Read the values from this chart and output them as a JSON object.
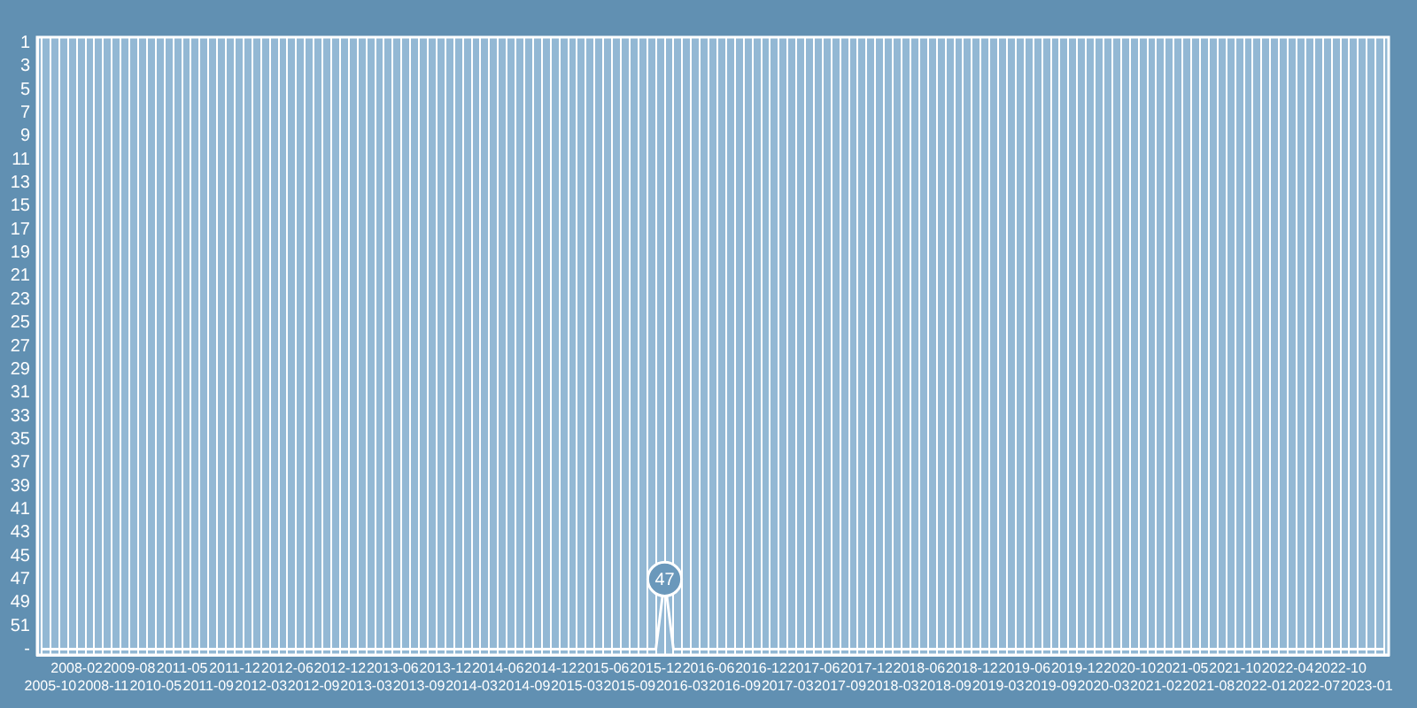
{
  "chart_data": {
    "type": "line",
    "categories": [
      null,
      "2005-10",
      null,
      null,
      "2008-02",
      null,
      null,
      "2008-11",
      null,
      null,
      "2009-08",
      null,
      null,
      "2010-05",
      null,
      null,
      "2011-05",
      null,
      null,
      "2011-09",
      null,
      null,
      "2011-12",
      null,
      null,
      "2012-03",
      null,
      null,
      "2012-06",
      null,
      null,
      "2012-09",
      null,
      null,
      "2012-12",
      null,
      null,
      "2013-03",
      null,
      null,
      "2013-06",
      null,
      null,
      "2013-09",
      null,
      null,
      "2013-12",
      null,
      null,
      "2014-03",
      null,
      null,
      "2014-06",
      null,
      null,
      "2014-09",
      null,
      null,
      "2014-12",
      null,
      null,
      "2015-03",
      null,
      null,
      "2015-06",
      null,
      null,
      "2015-09",
      null,
      null,
      "2015-12",
      null,
      null,
      "2016-03",
      null,
      null,
      "2016-06",
      null,
      null,
      "2016-09",
      null,
      null,
      "2016-12",
      null,
      null,
      "2017-03",
      null,
      null,
      "2017-06",
      null,
      null,
      "2017-09",
      null,
      null,
      "2017-12",
      null,
      null,
      "2018-03",
      null,
      null,
      "2018-06",
      null,
      null,
      "2018-09",
      null,
      null,
      "2018-12",
      null,
      null,
      "2019-03",
      null,
      null,
      "2019-06",
      null,
      null,
      "2019-09",
      null,
      null,
      "2019-12",
      null,
      null,
      "2020-03",
      null,
      null,
      "2020-10",
      null,
      null,
      "2021-02",
      null,
      null,
      "2021-05",
      null,
      null,
      "2021-08",
      null,
      null,
      "2021-10",
      null,
      null,
      "2022-01",
      null,
      null,
      "2022-04",
      null,
      null,
      "2022-07",
      null,
      null,
      "2022-10",
      null,
      null,
      "2023-01",
      null,
      null
    ],
    "values": [
      53,
      53,
      53,
      53,
      53,
      53,
      53,
      53,
      53,
      53,
      53,
      53,
      53,
      53,
      53,
      53,
      53,
      53,
      53,
      53,
      53,
      53,
      53,
      53,
      53,
      53,
      53,
      53,
      53,
      53,
      53,
      53,
      53,
      53,
      53,
      53,
      53,
      53,
      53,
      53,
      53,
      53,
      53,
      53,
      53,
      53,
      53,
      53,
      53,
      53,
      53,
      53,
      53,
      53,
      53,
      53,
      53,
      53,
      53,
      53,
      53,
      53,
      53,
      53,
      53,
      53,
      53,
      53,
      53,
      53,
      53,
      47,
      53,
      53,
      53,
      53,
      53,
      53,
      53,
      53,
      53,
      53,
      53,
      53,
      53,
      53,
      53,
      53,
      53,
      53,
      53,
      53,
      53,
      53,
      53,
      53,
      53,
      53,
      53,
      53,
      53,
      53,
      53,
      53,
      53,
      53,
      53,
      53,
      53,
      53,
      53,
      53,
      53,
      53,
      53,
      53,
      53,
      53,
      53,
      53,
      53,
      53,
      53,
      53,
      53,
      53,
      53,
      53,
      53,
      53,
      53,
      53,
      53,
      53,
      53,
      53,
      53,
      53,
      53,
      53,
      53,
      53,
      53,
      53,
      53,
      53,
      53,
      53,
      53,
      53,
      53,
      53,
      53,
      53
    ],
    "value_labels": [
      null,
      null,
      null,
      null,
      null,
      null,
      null,
      null,
      null,
      null,
      null,
      null,
      null,
      null,
      null,
      null,
      null,
      null,
      null,
      null,
      null,
      null,
      null,
      null,
      null,
      null,
      null,
      null,
      null,
      null,
      null,
      null,
      null,
      null,
      null,
      null,
      null,
      null,
      null,
      null,
      null,
      null,
      null,
      null,
      null,
      null,
      null,
      null,
      null,
      null,
      null,
      null,
      null,
      null,
      null,
      null,
      null,
      null,
      null,
      null,
      null,
      null,
      null,
      null,
      null,
      null,
      null,
      null,
      null,
      null,
      null,
      "47",
      null,
      null,
      null,
      null,
      null,
      null,
      null,
      null,
      null,
      null,
      null,
      null,
      null,
      null,
      null,
      null,
      null,
      null,
      null,
      null,
      null,
      null,
      null,
      null,
      null,
      null,
      null,
      null,
      null,
      null,
      null,
      null,
      null,
      null,
      null,
      null,
      null,
      null,
      null,
      null,
      null,
      null,
      null,
      null,
      null,
      null,
      null,
      null,
      null,
      null,
      null,
      null,
      null,
      null,
      null,
      null,
      null,
      null,
      null,
      null,
      null,
      null,
      null,
      null,
      null,
      null,
      null,
      null,
      null,
      null,
      null,
      null,
      null,
      null,
      null,
      null,
      null,
      null,
      null,
      null,
      null,
      null
    ],
    "color": "#ffffff",
    "ylim": [
      53.5,
      0.5
    ],
    "yticks": [
      1,
      3,
      5,
      7,
      9,
      11,
      13,
      15,
      17,
      19,
      21,
      23,
      25,
      27,
      29,
      31,
      33,
      35,
      37,
      39,
      41,
      43,
      45,
      47,
      49,
      51,
      {
        "value": 53,
        "label": "-"
      }
    ],
    "grid": "x",
    "marker": "none"
  }
}
